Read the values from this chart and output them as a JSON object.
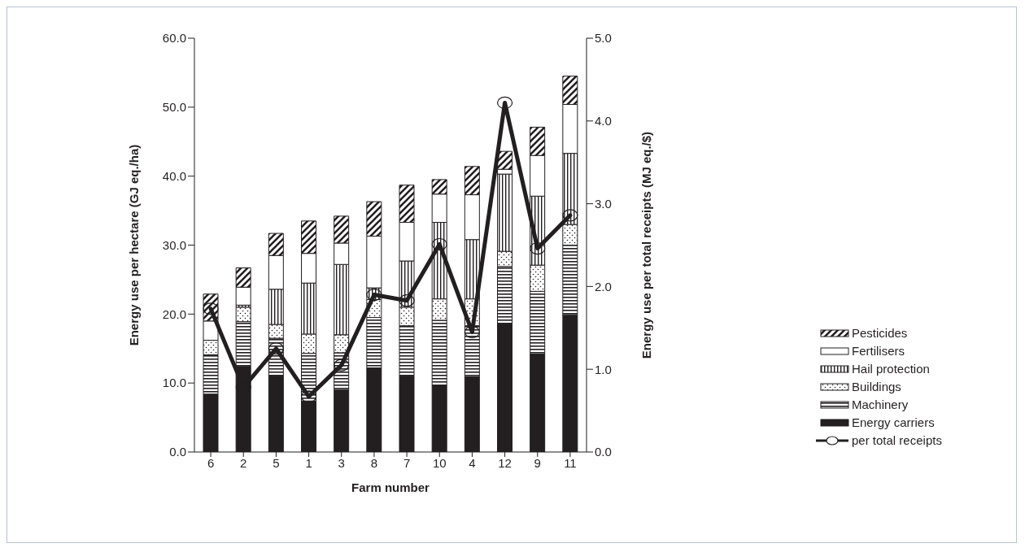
{
  "chart_data": {
    "type": "bar",
    "stacked": true,
    "xlabel": "Farm number",
    "ylabel": "Energy use per hectare (GJ eq./ha)",
    "y2label": "Energy use per total receipts (MJ eq./$)",
    "categories": [
      "6",
      "2",
      "5",
      "1",
      "3",
      "8",
      "7",
      "10",
      "4",
      "12",
      "9",
      "11"
    ],
    "series": [
      {
        "name": "Energy carriers",
        "color": "#231f20",
        "values": [
          8.4,
          12.4,
          11.0,
          7.4,
          9.0,
          12.2,
          11.0,
          9.7,
          10.9,
          18.6,
          14.2,
          19.9
        ]
      },
      {
        "name": "Machinery",
        "color": "#231f20",
        "values": [
          5.7,
          6.5,
          5.5,
          6.9,
          5.4,
          7.3,
          7.3,
          9.4,
          7.4,
          8.3,
          9.1,
          10.1
        ]
      },
      {
        "name": "Buildings",
        "color": "#231f20",
        "values": [
          2.1,
          2.1,
          2.0,
          2.8,
          2.6,
          2.6,
          2.7,
          3.1,
          3.9,
          2.2,
          3.8,
          3.0
        ]
      },
      {
        "name": "Hail protection",
        "color": "#231f20",
        "values": [
          0,
          0.3,
          5.1,
          7.4,
          10.2,
          1.7,
          6.7,
          11.1,
          8.6,
          11.2,
          10.0,
          10.3
        ]
      },
      {
        "name": "Fertilisers",
        "color": "#ffffff",
        "values": [
          2.8,
          2.6,
          4.9,
          4.3,
          3.1,
          7.5,
          5.6,
          4.1,
          6.5,
          0.7,
          5.9,
          7.1
        ]
      },
      {
        "name": "Pesticides",
        "color": "#231f20",
        "values": [
          3.9,
          2.8,
          3.2,
          4.7,
          3.9,
          5.0,
          5.4,
          2.1,
          4.1,
          2.6,
          4.1,
          4.1
        ]
      },
      {
        "name": "per total receipts",
        "type": "line",
        "axis": "y2",
        "color": "#231f20",
        "values": [
          1.73,
          0.78,
          1.25,
          0.67,
          1.05,
          1.9,
          1.83,
          2.51,
          1.45,
          4.22,
          2.46,
          2.86
        ]
      }
    ],
    "ylim": [
      0,
      60
    ],
    "yticks": [
      {
        "value": 0,
        "label": "0.0"
      },
      {
        "value": 10,
        "label": "10.0"
      },
      {
        "value": 20,
        "label": "20.0"
      },
      {
        "value": 30,
        "label": "30.0"
      },
      {
        "value": 40,
        "label": "40.0"
      },
      {
        "value": 50,
        "label": "50.0"
      },
      {
        "value": 60,
        "label": "60.0"
      }
    ],
    "y2lim": [
      0,
      5
    ],
    "y2ticks": [
      {
        "value": 0,
        "label": "0.0"
      },
      {
        "value": 1,
        "label": "1.0"
      },
      {
        "value": 2,
        "label": "2.0"
      },
      {
        "value": 3,
        "label": "3.0"
      },
      {
        "value": 4,
        "label": "4.0"
      },
      {
        "value": 5,
        "label": "5.0"
      }
    ],
    "grid": false,
    "legend": "right",
    "marker": "circle",
    "line_style": "solid"
  }
}
